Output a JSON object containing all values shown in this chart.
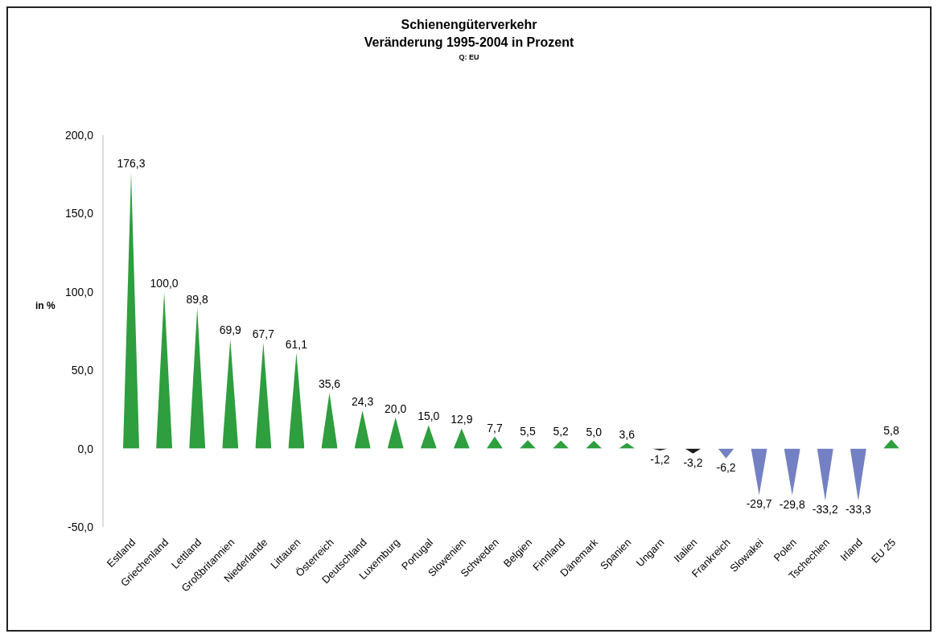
{
  "chart_data": {
    "type": "bar",
    "title": "Schienengüterverkehr",
    "subtitle": "Veränderung 1995-2004 in Prozent",
    "annotations": [
      "Q: EU"
    ],
    "ylabel": "in %",
    "categories": [
      "Estland",
      "Griechenland",
      "Lettland",
      "Großbritannien",
      "Niederlande",
      "Littauen",
      "Österreich",
      "Deutschland",
      "Luxemburg",
      "Portugal",
      "Slowenien",
      "Schweden",
      "Belgien",
      "Finnland",
      "Dänemark",
      "Spanien",
      "Ungarn",
      "Italien",
      "Frankreich",
      "Slowakei",
      "Polen",
      "Tschechien",
      "Irland",
      "EU 25"
    ],
    "values": [
      176.3,
      100.0,
      89.8,
      69.9,
      67.7,
      61.1,
      35.6,
      24.3,
      20.0,
      15.0,
      12.9,
      7.7,
      5.5,
      5.2,
      5.0,
      3.6,
      -1.2,
      -3.2,
      -6.2,
      -29.7,
      -29.8,
      -33.2,
      -33.3,
      5.8
    ],
    "value_labels": [
      "176,3",
      "100,0",
      "89,8",
      "69,9",
      "67,7",
      "61,1",
      "35,6",
      "24,3",
      "20,0",
      "15,0",
      "12,9",
      "7,7",
      "5,5",
      "5,2",
      "5,0",
      "3,6",
      "-1,2",
      "-3,2",
      "-6,2",
      "-29,7",
      "-29,8",
      "-33,2",
      "-33,3",
      "5,8"
    ],
    "colors": [
      "#2e9e3e",
      "#2e9e3e",
      "#2e9e3e",
      "#2e9e3e",
      "#2e9e3e",
      "#2e9e3e",
      "#2e9e3e",
      "#2e9e3e",
      "#2e9e3e",
      "#2e9e3e",
      "#2e9e3e",
      "#2e9e3e",
      "#2e9e3e",
      "#2e9e3e",
      "#2e9e3e",
      "#2e9e3e",
      "#1a1a1a",
      "#1a1a1a",
      "#7480c4",
      "#7480c4",
      "#7480c4",
      "#7480c4",
      "#7480c4",
      "#2e9e3e"
    ],
    "ylim": [
      -50,
      200
    ],
    "yticks": [
      {
        "value": -50,
        "label": "-50,0"
      },
      {
        "value": 0,
        "label": "0,0"
      },
      {
        "value": 50,
        "label": "50,0"
      },
      {
        "value": 100,
        "label": "100,0"
      },
      {
        "value": 150,
        "label": "150,0"
      },
      {
        "value": 200,
        "label": "200,0"
      }
    ],
    "grid": false
  }
}
